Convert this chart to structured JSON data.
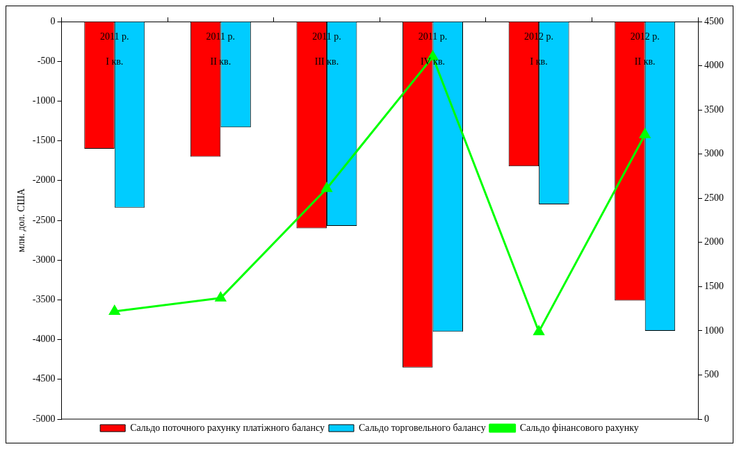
{
  "chart_data": {
    "type": "bar",
    "ylabel": "млн. дол. США",
    "categories": [
      "2011 р.\nI кв.",
      "2011 р.\nII кв.",
      "2011 р.\nIII кв.",
      "2011 р.\nIV кв.",
      "2012 р.\nI кв.",
      "2012 р.\nII кв."
    ],
    "series": [
      {
        "name": "Сальдо поточного рахунку платіжного балансу",
        "color": "#ff0000",
        "values": [
          -1600,
          -1700,
          -2600,
          -4350,
          -1820,
          -3510
        ]
      },
      {
        "name": "Сальдо торговельного балансу",
        "color": "#00ccff",
        "values": [
          -2340,
          -1330,
          -2570,
          -3900,
          -2300,
          -3890
        ]
      },
      {
        "name": "Сальдо фінансового рахунку",
        "type": "line",
        "axis": "y2",
        "color": "#00ff00",
        "marker": "triangle",
        "values": [
          1220,
          1370,
          2610,
          4100,
          990,
          3220
        ]
      }
    ],
    "ylim": [
      -5000,
      0
    ],
    "yticks": [
      -5000,
      -4500,
      -4000,
      -3500,
      -3000,
      -2500,
      -2000,
      -1500,
      -1000,
      -500,
      0
    ],
    "y2lim": [
      0,
      4500
    ],
    "y2ticks": [
      0,
      500,
      1000,
      1500,
      2000,
      2500,
      3000,
      3500,
      4000,
      4500
    ],
    "grid": false,
    "legend": "bottom"
  }
}
